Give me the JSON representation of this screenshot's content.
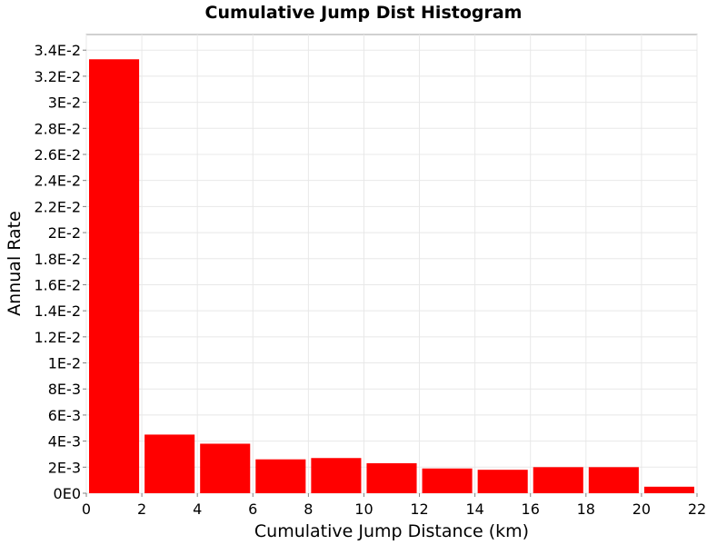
{
  "chart_data": {
    "type": "bar",
    "title": "Cumulative Jump Dist Histogram",
    "xlabel": "Cumulative Jump Distance (km)",
    "ylabel": "Annual Rate",
    "xlim": [
      0,
      22
    ],
    "ylim": [
      0,
      0.0352
    ],
    "x_ticks": [
      0,
      2,
      4,
      6,
      8,
      10,
      12,
      14,
      16,
      18,
      20,
      22
    ],
    "y_ticks": [
      {
        "value": 0,
        "label": "0E0"
      },
      {
        "value": 0.002,
        "label": "2E-3"
      },
      {
        "value": 0.004,
        "label": "4E-3"
      },
      {
        "value": 0.006,
        "label": "6E-3"
      },
      {
        "value": 0.008,
        "label": "8E-3"
      },
      {
        "value": 0.01,
        "label": "1E-2"
      },
      {
        "value": 0.012,
        "label": "1.2E-2"
      },
      {
        "value": 0.014,
        "label": "1.4E-2"
      },
      {
        "value": 0.016,
        "label": "1.6E-2"
      },
      {
        "value": 0.018,
        "label": "1.8E-2"
      },
      {
        "value": 0.02,
        "label": "2E-2"
      },
      {
        "value": 0.022,
        "label": "2.2E-2"
      },
      {
        "value": 0.024,
        "label": "2.4E-2"
      },
      {
        "value": 0.026,
        "label": "2.6E-2"
      },
      {
        "value": 0.028,
        "label": "2.8E-2"
      },
      {
        "value": 0.03,
        "label": "3E-2"
      },
      {
        "value": 0.032,
        "label": "3.2E-2"
      },
      {
        "value": 0.034,
        "label": "3.4E-2"
      }
    ],
    "bar_color": "#ff0000",
    "bins": [
      {
        "x0": 0,
        "x1": 2,
        "value": 0.0333
      },
      {
        "x0": 2,
        "x1": 4,
        "value": 0.0045
      },
      {
        "x0": 4,
        "x1": 6,
        "value": 0.0038
      },
      {
        "x0": 6,
        "x1": 8,
        "value": 0.0026
      },
      {
        "x0": 8,
        "x1": 10,
        "value": 0.0027
      },
      {
        "x0": 10,
        "x1": 12,
        "value": 0.0023
      },
      {
        "x0": 12,
        "x1": 14,
        "value": 0.0019
      },
      {
        "x0": 14,
        "x1": 16,
        "value": 0.0018
      },
      {
        "x0": 16,
        "x1": 18,
        "value": 0.002
      },
      {
        "x0": 18,
        "x1": 20,
        "value": 0.002
      },
      {
        "x0": 20,
        "x1": 22,
        "value": 0.0005
      }
    ],
    "grid": true,
    "legend": "none"
  }
}
